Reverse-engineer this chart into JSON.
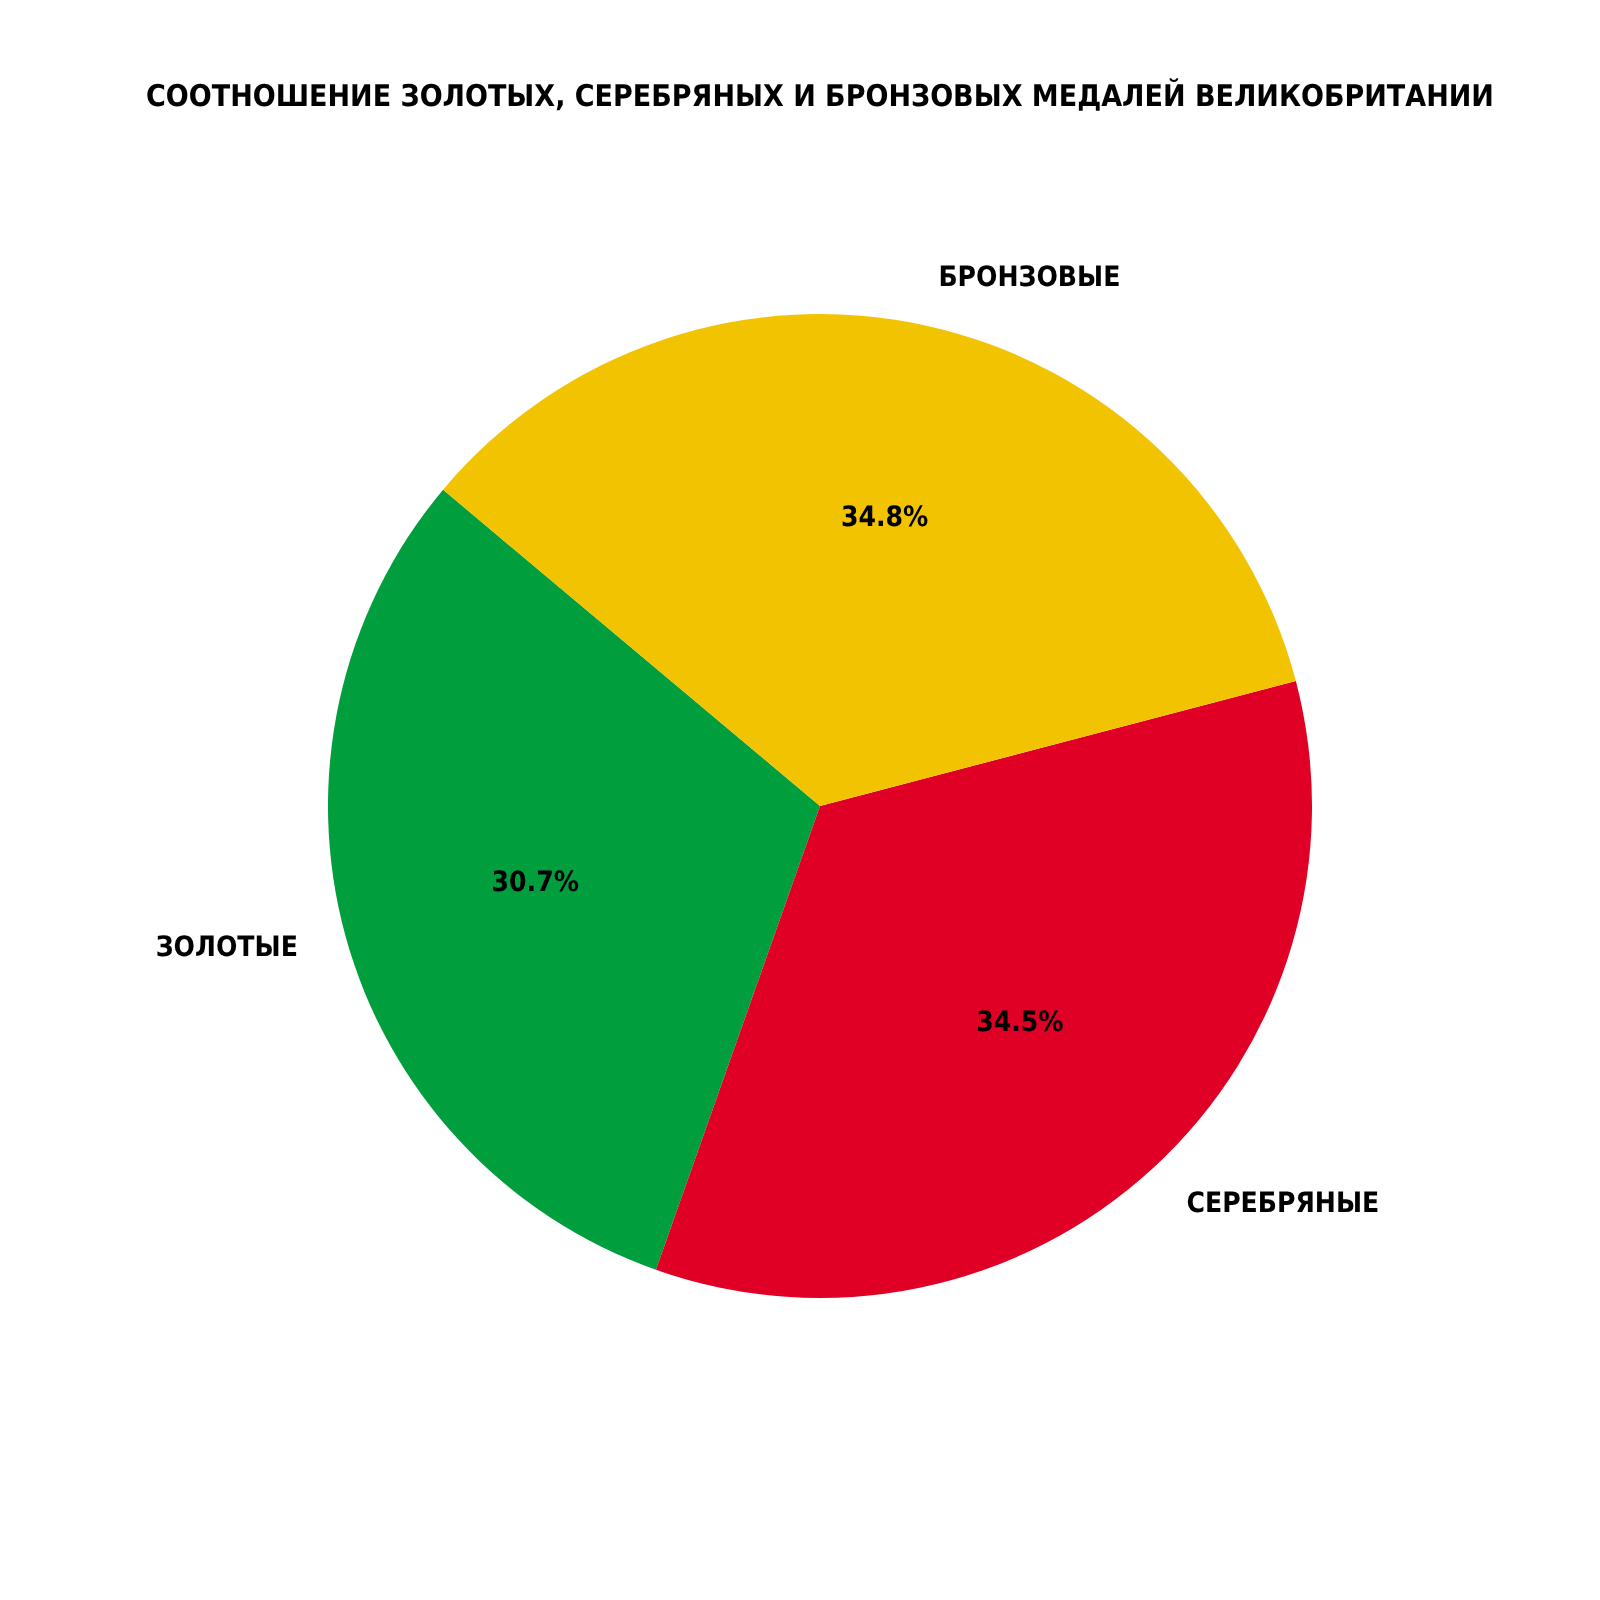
{
  "chart_data": {
    "type": "pie",
    "title": "СООТНОШЕНИЕ ЗОЛОТЫХ, СЕРЕБРЯНЫХ И БРОНЗОВЫХ МЕДАЛЕЙ ВЕЛИКОБРИТАНИИ",
    "categories": [
      "ЗОЛОТЫЕ",
      "СЕРЕБРЯНЫЕ",
      "БРОНЗОВЫЕ"
    ],
    "values": [
      30.7,
      34.5,
      34.8
    ],
    "colors": [
      "#009e3d",
      "#e00025",
      "#f2c300"
    ],
    "value_labels": [
      "30.7%",
      "34.5%",
      "34.8%"
    ]
  }
}
